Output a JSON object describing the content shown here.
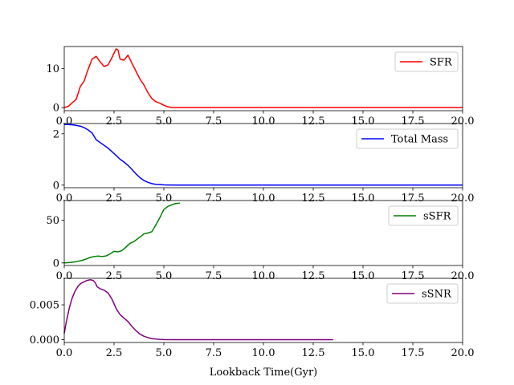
{
  "chart_data": [
    {
      "type": "line",
      "xlim": [
        0,
        20
      ],
      "ylim": [
        -0.8,
        15.6
      ],
      "xticks": [
        0,
        2.5,
        5,
        7.5,
        10,
        12.5,
        15,
        17.5,
        20
      ],
      "xtick_labels": [
        "0.0",
        "2.5",
        "5.0",
        "7.5",
        "10.0",
        "12.5",
        "15.0",
        "17.5",
        "20.0"
      ],
      "yticks": [
        0,
        10
      ],
      "ytick_labels": [
        "0",
        "10"
      ],
      "legend_position": "top-right",
      "series": [
        {
          "name": "SFR",
          "color": "#ff0000",
          "x": [
            0.0,
            0.2,
            0.4,
            0.6,
            0.8,
            1.0,
            1.2,
            1.4,
            1.6,
            1.8,
            2.0,
            2.2,
            2.4,
            2.5,
            2.6,
            2.7,
            2.8,
            3.0,
            3.2,
            3.4,
            3.6,
            3.8,
            4.0,
            4.2,
            4.4,
            4.6,
            4.8,
            5.0,
            5.2,
            5.4,
            6.0,
            8.0,
            10.0,
            12.0,
            14.0,
            16.0,
            18.0,
            20.0
          ],
          "y": [
            0.0,
            0.3,
            1.2,
            2.1,
            5.3,
            6.8,
            9.8,
            12.4,
            13.1,
            11.7,
            10.5,
            10.9,
            12.8,
            13.9,
            15.0,
            14.7,
            12.4,
            12.1,
            13.4,
            11.3,
            9.3,
            7.3,
            5.8,
            3.8,
            2.3,
            1.5,
            1.1,
            0.6,
            0.2,
            0.0,
            0.0,
            0.0,
            0.0,
            0.0,
            0.0,
            0.0,
            0.0,
            0.0
          ]
        }
      ]
    },
    {
      "type": "line",
      "xlim": [
        0,
        20
      ],
      "ylim": [
        -0.1,
        2.4
      ],
      "xticks": [
        0,
        2.5,
        5,
        7.5,
        10,
        12.5,
        15,
        17.5,
        20
      ],
      "xtick_labels": [
        "0.0",
        "2.5",
        "5.0",
        "7.5",
        "10.0",
        "12.5",
        "15.0",
        "17.5",
        "20.0"
      ],
      "yticks": [
        0,
        2
      ],
      "ytick_labels": [
        "0",
        "2"
      ],
      "legend_position": "top-right",
      "series": [
        {
          "name": "Total Mass",
          "color": "#0000ff",
          "x": [
            0.0,
            0.2,
            0.5,
            0.8,
            1.0,
            1.2,
            1.4,
            1.6,
            1.8,
            2.0,
            2.2,
            2.4,
            2.6,
            2.8,
            3.0,
            3.2,
            3.4,
            3.6,
            3.8,
            4.0,
            4.2,
            4.4,
            4.6,
            4.8,
            5.0,
            5.2,
            5.5,
            6.0,
            8.0,
            10.0,
            12.0,
            14.0,
            16.0,
            18.0,
            20.0
          ],
          "y": [
            2.36,
            2.36,
            2.34,
            2.3,
            2.24,
            2.15,
            2.03,
            1.77,
            1.66,
            1.55,
            1.44,
            1.3,
            1.16,
            1.01,
            0.9,
            0.77,
            0.61,
            0.44,
            0.29,
            0.18,
            0.11,
            0.06,
            0.03,
            0.02,
            0.01,
            0.005,
            0.0,
            0.0,
            0.0,
            0.0,
            0.0,
            0.0,
            0.0,
            0.0,
            0.0
          ]
        }
      ]
    },
    {
      "type": "line",
      "xlim": [
        0,
        20
      ],
      "ylim": [
        -3,
        73
      ],
      "xticks": [
        0,
        2.5,
        5,
        7.5,
        10,
        12.5,
        15,
        17.5,
        20
      ],
      "xtick_labels": [
        "0.0",
        "2.5",
        "5.0",
        "7.5",
        "10.0",
        "12.5",
        "15.0",
        "17.5",
        "20.0"
      ],
      "yticks": [
        0,
        50
      ],
      "ytick_labels": [
        "0",
        "50"
      ],
      "legend_position": "top-right",
      "series": [
        {
          "name": "sSFR",
          "color": "#008000",
          "x": [
            0.0,
            0.3,
            0.6,
            0.9,
            1.1,
            1.3,
            1.5,
            1.7,
            1.9,
            2.1,
            2.3,
            2.5,
            2.7,
            2.9,
            3.1,
            3.3,
            3.5,
            3.7,
            3.9,
            4.0,
            4.2,
            4.4,
            4.6,
            4.8,
            5.0,
            5.2,
            5.4,
            5.6,
            5.8
          ],
          "y": [
            0.0,
            0.5,
            1.5,
            3.0,
            4.5,
            6.5,
            7.5,
            8.0,
            7.5,
            8.2,
            10.5,
            13.5,
            13.0,
            14.5,
            18.5,
            23.0,
            25.0,
            28.5,
            32.0,
            34.0,
            35.0,
            36.5,
            44.5,
            53.0,
            62.5,
            66.0,
            68.0,
            69.5,
            70.0
          ]
        }
      ]
    },
    {
      "type": "line",
      "xlim": [
        0,
        20
      ],
      "ylim": [
        -0.0004,
        0.0088
      ],
      "xticks": [
        0,
        2.5,
        5,
        7.5,
        10,
        12.5,
        15,
        17.5,
        20
      ],
      "xtick_labels": [
        "0.0",
        "2.5",
        "5.0",
        "7.5",
        "10.0",
        "12.5",
        "15.0",
        "17.5",
        "20.0"
      ],
      "yticks": [
        0,
        0.005
      ],
      "ytick_labels": [
        "0.000",
        "0.005"
      ],
      "xlabel": "Lookback Time(Gyr)",
      "legend_position": "top-right",
      "series": [
        {
          "name": "sSNR",
          "color": "#800080",
          "x": [
            0.0,
            0.1,
            0.25,
            0.4,
            0.55,
            0.7,
            0.85,
            1.0,
            1.15,
            1.3,
            1.45,
            1.55,
            1.65,
            1.8,
            2.0,
            2.2,
            2.4,
            2.6,
            2.8,
            3.0,
            3.2,
            3.4,
            3.6,
            3.8,
            4.0,
            4.2,
            4.4,
            4.6,
            4.8,
            5.0,
            5.5,
            6.0,
            7.0,
            8.0,
            9.0,
            10.0,
            11.0,
            12.0,
            13.0,
            13.5
          ],
          "y": [
            0.0009,
            0.0025,
            0.0045,
            0.006,
            0.007,
            0.0077,
            0.0081,
            0.0083,
            0.0085,
            0.0086,
            0.0085,
            0.0082,
            0.0076,
            0.0073,
            0.0071,
            0.0067,
            0.0058,
            0.0045,
            0.0036,
            0.0031,
            0.0026,
            0.0019,
            0.0013,
            0.0008,
            0.0005,
            0.0003,
            0.00015,
            0.0001,
            5e-05,
            2e-05,
            0.0,
            0.0,
            0.0,
            0.0,
            0.0,
            0.0,
            0.0,
            0.0,
            0.0,
            0.0
          ]
        }
      ]
    }
  ]
}
